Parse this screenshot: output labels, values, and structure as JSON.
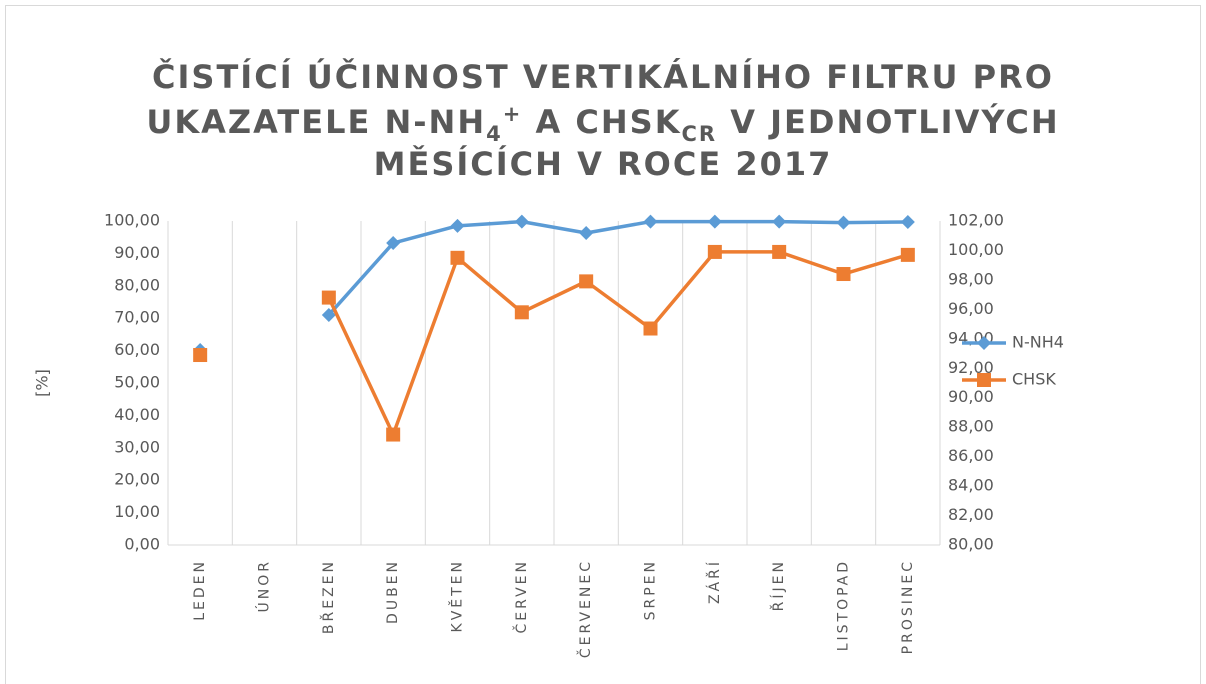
{
  "chart_data": {
    "type": "line",
    "title": [
      [
        "ČISTÍCÍ ÚČINNOST VERTIKÁLNÍHO FILTRU PRO"
      ],
      [
        "UKAZATELE N-NH",
        "4",
        "+",
        " A CHSK",
        "CR",
        " V JEDNOTLIVÝCH"
      ],
      [
        "MĚSÍCÍCH V ROCE 2017"
      ]
    ],
    "ylabel": "[%]",
    "categories": [
      "LEDEN",
      "ÚNOR",
      "BŘEZEN",
      "DUBEN",
      "KVĚTEN",
      "ČERVEN",
      "ČERVENEC",
      "SRPEN",
      "ZÁŘÍ",
      "ŘÍJEN",
      "LISTOPAD",
      "PROSINEC"
    ],
    "series": [
      {
        "name": "N-NH4",
        "color": "#5b9bd5",
        "marker": "diamond",
        "axis": "y",
        "values": [
          60.2,
          null,
          71.0,
          93.2,
          98.5,
          99.8,
          96.3,
          99.8,
          99.8,
          99.8,
          99.5,
          99.7
        ]
      },
      {
        "name": "CHSK",
        "color": "#ed7d31",
        "marker": "square",
        "axis": "y2",
        "values": [
          92.9,
          null,
          96.8,
          87.5,
          99.5,
          95.8,
          97.9,
          94.7,
          99.9,
          99.9,
          98.4,
          99.7
        ]
      }
    ],
    "ylim": [
      0,
      100
    ],
    "yticks": [
      {
        "value": 0,
        "label": "0,00"
      },
      {
        "value": 10,
        "label": "10,00"
      },
      {
        "value": 20,
        "label": "20,00"
      },
      {
        "value": 30,
        "label": "30,00"
      },
      {
        "value": 40,
        "label": "40,00"
      },
      {
        "value": 50,
        "label": "50,00"
      },
      {
        "value": 60,
        "label": "60,00"
      },
      {
        "value": 70,
        "label": "70,00"
      },
      {
        "value": 80,
        "label": "80,00"
      },
      {
        "value": 90,
        "label": "90,00"
      },
      {
        "value": 100,
        "label": "100,00"
      }
    ],
    "y2lim": [
      80,
      102
    ],
    "y2ticks": [
      {
        "value": 80,
        "label": "80,00"
      },
      {
        "value": 82,
        "label": "82,00"
      },
      {
        "value": 84,
        "label": "84,00"
      },
      {
        "value": 86,
        "label": "86,00"
      },
      {
        "value": 88,
        "label": "88,00"
      },
      {
        "value": 90,
        "label": "90,00"
      },
      {
        "value": 92,
        "label": "92,00"
      },
      {
        "value": 94,
        "label": "94,00"
      },
      {
        "value": 96,
        "label": "96,00"
      },
      {
        "value": 98,
        "label": "98,00"
      },
      {
        "value": 100,
        "label": "100,00"
      },
      {
        "value": 102,
        "label": "102,00"
      }
    ],
    "legend": "right"
  }
}
